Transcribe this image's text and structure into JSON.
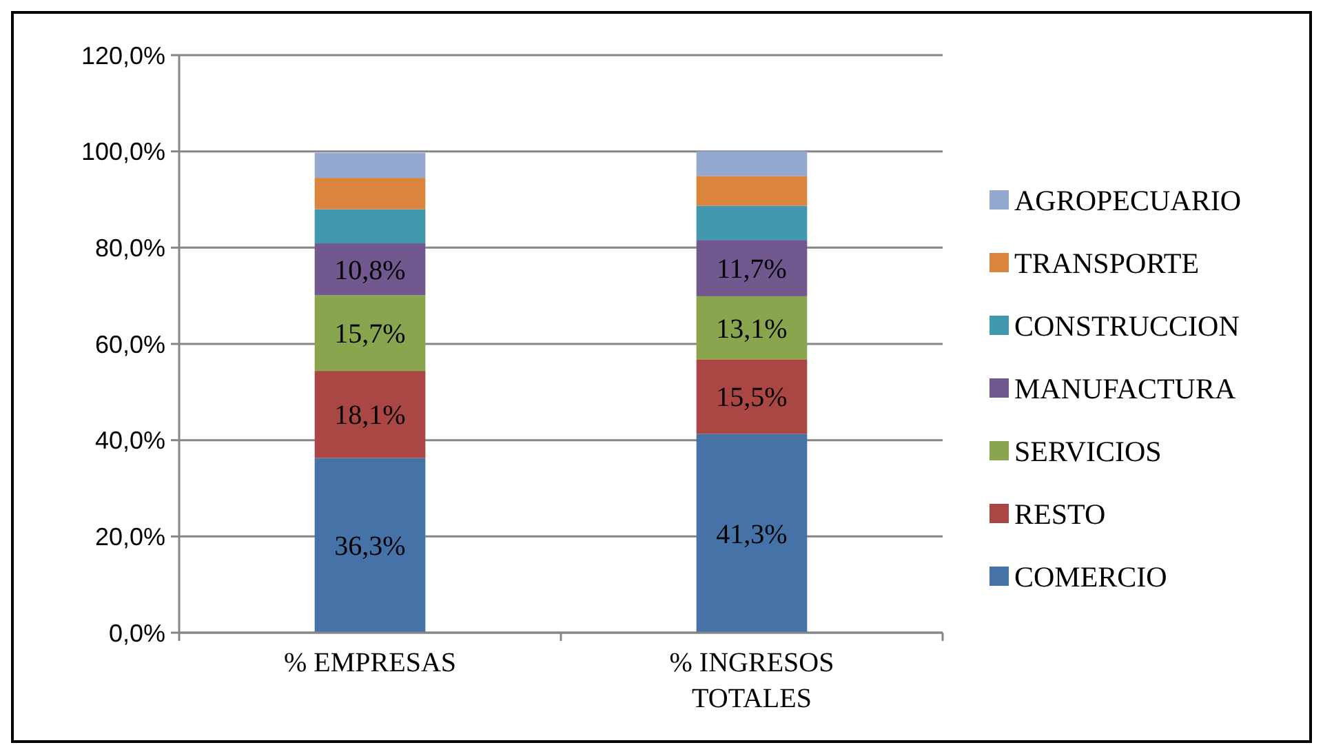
{
  "chart_data": {
    "type": "bar",
    "stacked": true,
    "categories": [
      "% EMPRESAS",
      "% INGRESOS TOTALES"
    ],
    "series": [
      {
        "name": "COMERCIO",
        "color": "#4572a7",
        "values": [
          36.3,
          41.3
        ],
        "value_labels": [
          "36,3%",
          "41,3%"
        ]
      },
      {
        "name": "RESTO",
        "color": "#aa4643",
        "values": [
          18.1,
          15.5
        ],
        "value_labels": [
          "18,1%",
          "15,5%"
        ]
      },
      {
        "name": "SERVICIOS",
        "color": "#89a54e",
        "values": [
          15.7,
          13.1
        ],
        "value_labels": [
          "15,7%",
          "13,1%"
        ]
      },
      {
        "name": "MANUFACTURA",
        "color": "#71588f",
        "values": [
          10.8,
          11.7
        ],
        "value_labels": [
          "10,8%",
          "11,7%"
        ]
      },
      {
        "name": "CONSTRUCCION",
        "color": "#4198af",
        "values": [
          7.1,
          7.1
        ]
      },
      {
        "name": "TRANSPORTE",
        "color": "#db843d",
        "values": [
          6.5,
          6.2
        ]
      },
      {
        "name": "AGROPECUARIO",
        "color": "#93a9cf",
        "values": [
          5.2,
          5.1
        ]
      }
    ],
    "ylim": [
      0,
      120
    ],
    "yticks": [
      {
        "value": 0,
        "label": "0,0%"
      },
      {
        "value": 20,
        "label": "20,0%"
      },
      {
        "value": 40,
        "label": "40,0%"
      },
      {
        "value": 60,
        "label": "60,0%"
      },
      {
        "value": 80,
        "label": "80,0%"
      },
      {
        "value": 100,
        "label": "100,0%"
      },
      {
        "value": 120,
        "label": "120,0%"
      }
    ],
    "grid": "y",
    "legend": "right"
  }
}
